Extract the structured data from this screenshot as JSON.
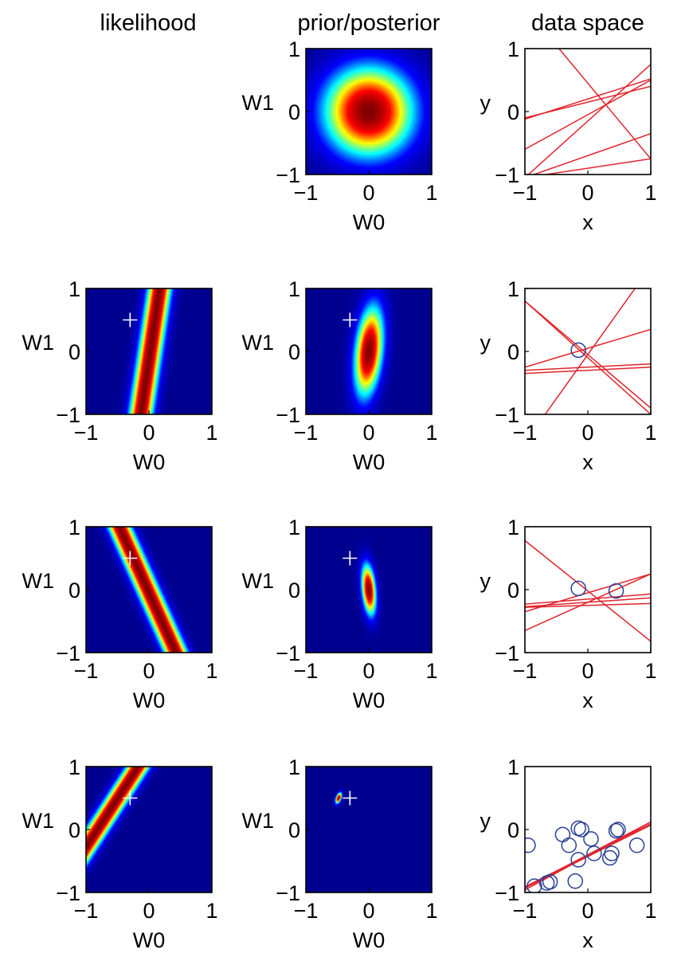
{
  "column_titles": [
    "likelihood",
    "prior/posterior",
    "data space"
  ],
  "axis": {
    "w_xlabel": "W0",
    "w_ylabel": "W1",
    "d_xlabel": "x",
    "d_ylabel": "y",
    "ticks": [
      -1,
      0,
      1
    ]
  },
  "colors": {
    "colormap": [
      "#00008f",
      "#0000ff",
      "#00ffff",
      "#ffff00",
      "#ff0000",
      "#800000"
    ],
    "background": "#00008f",
    "lines": "#e0242b",
    "circles": "#2a3f96",
    "marker": "#ffffff"
  },
  "chart_data": {
    "type": "heatmap",
    "true_weights": {
      "w0": -0.3,
      "w1": 0.5
    },
    "rows": [
      {
        "likelihood": null,
        "posterior": {
          "mean": [
            0,
            0
          ],
          "sd": [
            0.5,
            0.5
          ],
          "rho": 0
        },
        "marker": false,
        "lines": [
          {
            "w0": -0.15,
            "w1": 0.9
          },
          {
            "w0": 0.45,
            "w1": -1.2
          },
          {
            "w0": 0.2,
            "w1": 0.32
          },
          {
            "w0": 0.15,
            "w1": 0.25
          },
          {
            "w0": -0.05,
            "w1": 0.55
          },
          {
            "w0": -0.9,
            "w1": 0.15
          },
          {
            "w0": -0.7,
            "w1": 0.35
          }
        ],
        "points": []
      },
      {
        "likelihood": {
          "x": -0.15,
          "y": 0.02,
          "sigma": 0.13
        },
        "posterior": {
          "mean": [
            0,
            0
          ],
          "sd": [
            0.16,
            0.5
          ],
          "rho": 0.3
        },
        "marker": true,
        "lines": [
          {
            "w0": -0.05,
            "w1": -0.85
          },
          {
            "w0": -0.05,
            "w1": 1.4
          },
          {
            "w0": 0.05,
            "w1": 0.3
          },
          {
            "w0": -0.3,
            "w1": 0.05
          },
          {
            "w0": -0.25,
            "w1": 0.05
          },
          {
            "w0": -0.1,
            "w1": -0.9
          }
        ],
        "points": [
          {
            "x": -0.15,
            "y": 0.02
          }
        ]
      },
      {
        "likelihood": {
          "x": 0.45,
          "y": -0.02,
          "sigma": 0.13
        },
        "posterior": {
          "mean": [
            0,
            0
          ],
          "sd": [
            0.08,
            0.28
          ],
          "rho": -0.3
        },
        "marker": true,
        "lines": [
          {
            "w0": -0.05,
            "w1": 0.3
          },
          {
            "w0": -0.2,
            "w1": 0.45
          },
          {
            "w0": -0.15,
            "w1": 0.08
          },
          {
            "w0": -0.2,
            "w1": 0.07
          },
          {
            "w0": -0.25,
            "w1": 0.03
          },
          {
            "w0": -0.02,
            "w1": -0.8
          }
        ],
        "points": [
          {
            "x": -0.15,
            "y": 0.02
          },
          {
            "x": 0.45,
            "y": -0.02
          }
        ]
      },
      {
        "likelihood": {
          "x": -0.65,
          "y": -0.82,
          "sigma": 0.13
        },
        "posterior": {
          "mean": [
            -0.48,
            0.5
          ],
          "sd": [
            0.035,
            0.06
          ],
          "rho": 0.5
        },
        "marker": true,
        "lines": [
          {
            "w0": -0.42,
            "w1": 0.54
          },
          {
            "w0": -0.41,
            "w1": 0.5
          },
          {
            "w0": -0.4,
            "w1": 0.52
          },
          {
            "w0": -0.43,
            "w1": 0.5
          }
        ],
        "points": [
          {
            "x": -0.15,
            "y": 0.02
          },
          {
            "x": 0.45,
            "y": -0.02
          },
          {
            "x": -0.95,
            "y": -0.25
          },
          {
            "x": -0.85,
            "y": -0.9
          },
          {
            "x": -0.65,
            "y": -0.85
          },
          {
            "x": -0.6,
            "y": -0.83
          },
          {
            "x": -0.4,
            "y": -0.08
          },
          {
            "x": -0.3,
            "y": -0.25
          },
          {
            "x": -0.2,
            "y": -0.82
          },
          {
            "x": -0.15,
            "y": -0.48
          },
          {
            "x": -0.1,
            "y": 0.0
          },
          {
            "x": 0.05,
            "y": -0.15
          },
          {
            "x": 0.1,
            "y": -0.38
          },
          {
            "x": 0.35,
            "y": -0.45
          },
          {
            "x": 0.38,
            "y": -0.38
          },
          {
            "x": 0.48,
            "y": 0.0
          },
          {
            "x": 0.78,
            "y": -0.25
          }
        ]
      }
    ]
  }
}
